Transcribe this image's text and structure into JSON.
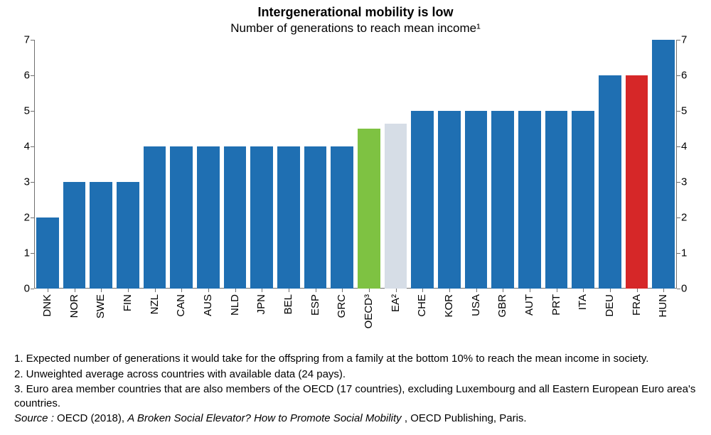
{
  "title": {
    "main": "Intergenerational mobility is low",
    "sub": "Number of generations to reach mean income¹",
    "main_fontsize": 18,
    "sub_fontsize": 17
  },
  "chart": {
    "type": "bar",
    "ylim": [
      0,
      7
    ],
    "ytick_step": 1,
    "yticks": [
      0,
      1,
      2,
      3,
      4,
      5,
      6,
      7
    ],
    "axis_color": "#6f6f6f",
    "background_color": "#ffffff",
    "default_bar_color": "#1f6fb2",
    "highlight_colors": {
      "oecd": "#7ec242",
      "ea": "#d6dde6",
      "fra": "#d62728"
    },
    "bar_width_ratio": 0.84,
    "label_fontsize": 15,
    "categories": [
      {
        "code": "DNK",
        "value": 2,
        "color": "#1f6fb2"
      },
      {
        "code": "NOR",
        "value": 3,
        "color": "#1f6fb2"
      },
      {
        "code": "SWE",
        "value": 3,
        "color": "#1f6fb2"
      },
      {
        "code": "FIN",
        "value": 3,
        "color": "#1f6fb2"
      },
      {
        "code": "NZL",
        "value": 4,
        "color": "#1f6fb2"
      },
      {
        "code": "CAN",
        "value": 4,
        "color": "#1f6fb2"
      },
      {
        "code": "AUS",
        "value": 4,
        "color": "#1f6fb2"
      },
      {
        "code": "NLD",
        "value": 4,
        "color": "#1f6fb2"
      },
      {
        "code": "JPN",
        "value": 4,
        "color": "#1f6fb2"
      },
      {
        "code": "BEL",
        "value": 4,
        "color": "#1f6fb2"
      },
      {
        "code": "ESP",
        "value": 4,
        "color": "#1f6fb2"
      },
      {
        "code": "GRC",
        "value": 4,
        "color": "#1f6fb2"
      },
      {
        "code": "OECD³",
        "value": 4.5,
        "color": "#7ec242"
      },
      {
        "code": "EA²",
        "value": 4.65,
        "color": "#d6dde6"
      },
      {
        "code": "CHE",
        "value": 5,
        "color": "#1f6fb2"
      },
      {
        "code": "KOR",
        "value": 5,
        "color": "#1f6fb2"
      },
      {
        "code": "USA",
        "value": 5,
        "color": "#1f6fb2"
      },
      {
        "code": "GBR",
        "value": 5,
        "color": "#1f6fb2"
      },
      {
        "code": "AUT",
        "value": 5,
        "color": "#1f6fb2"
      },
      {
        "code": "PRT",
        "value": 5,
        "color": "#1f6fb2"
      },
      {
        "code": "ITA",
        "value": 5,
        "color": "#1f6fb2"
      },
      {
        "code": "DEU",
        "value": 6,
        "color": "#1f6fb2"
      },
      {
        "code": "FRA",
        "value": 6,
        "color": "#d62728"
      },
      {
        "code": "HUN",
        "value": 7,
        "color": "#1f6fb2"
      }
    ]
  },
  "footnotes": {
    "n1": "1. Expected number of generations it would take for the offspring from a family at the bottom 10% to reach the mean income in society.",
    "n2": "2. Unweighted average across countries with available data (24 pays).",
    "n3": "3. Euro area member countries that are also members of the OECD (17 countries), excluding Luxembourg and all Eastern European Euro area's countries."
  },
  "source": {
    "label": "Source : ",
    "prefix": " OECD (2018), ",
    "italic": "A Broken Social Elevator? How to Promote Social Mobility ",
    "suffix": ", OECD Publishing, Paris."
  }
}
